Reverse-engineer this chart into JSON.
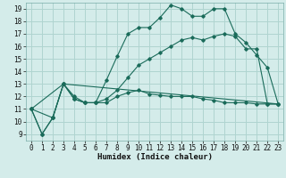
{
  "title": "",
  "xlabel": "Humidex (Indice chaleur)",
  "ylabel": "",
  "background_color": "#d4ecea",
  "grid_color": "#afd4d0",
  "line_color": "#1a6b5a",
  "xlim": [
    -0.5,
    23.5
  ],
  "ylim": [
    8.5,
    19.5
  ],
  "xticks": [
    0,
    1,
    2,
    3,
    4,
    5,
    6,
    7,
    8,
    9,
    10,
    11,
    12,
    13,
    14,
    15,
    16,
    17,
    18,
    19,
    20,
    21,
    22,
    23
  ],
  "yticks": [
    9,
    10,
    11,
    12,
    13,
    14,
    15,
    16,
    17,
    18,
    19
  ],
  "line1_x": [
    0,
    1,
    2,
    3,
    4,
    5,
    6,
    7,
    8,
    9,
    10,
    11,
    12,
    13,
    14,
    15,
    16,
    17,
    18,
    19,
    20,
    21,
    22,
    23
  ],
  "line1_y": [
    11.0,
    9.0,
    10.3,
    13.0,
    12.0,
    11.5,
    11.5,
    13.3,
    15.2,
    17.0,
    17.5,
    17.5,
    18.3,
    19.3,
    19.0,
    18.4,
    18.4,
    19.0,
    19.0,
    17.0,
    16.3,
    15.3,
    14.3,
    11.4
  ],
  "line2_x": [
    0,
    1,
    2,
    3,
    4,
    5,
    6,
    7,
    8,
    9,
    10,
    11,
    12,
    13,
    14,
    15,
    16,
    17,
    18,
    19,
    20,
    21,
    22,
    23
  ],
  "line2_y": [
    11.0,
    9.0,
    10.3,
    13.0,
    11.8,
    11.5,
    11.5,
    11.5,
    12.0,
    12.3,
    12.5,
    12.2,
    12.1,
    12.0,
    12.0,
    12.0,
    11.8,
    11.7,
    11.5,
    11.5,
    11.5,
    11.4,
    11.4,
    11.4
  ],
  "line3_x": [
    0,
    2,
    3,
    4,
    5,
    6,
    7,
    8,
    9,
    10,
    11,
    12,
    13,
    14,
    15,
    16,
    17,
    18,
    19,
    20,
    21,
    22,
    23
  ],
  "line3_y": [
    11.0,
    10.3,
    13.0,
    11.8,
    11.5,
    11.5,
    11.8,
    12.5,
    13.5,
    14.5,
    15.0,
    15.5,
    16.0,
    16.5,
    16.7,
    16.5,
    16.8,
    17.0,
    16.8,
    15.8,
    15.8,
    11.4,
    11.4
  ],
  "line4_x": [
    0,
    3,
    23
  ],
  "line4_y": [
    11.0,
    13.0,
    11.4
  ]
}
